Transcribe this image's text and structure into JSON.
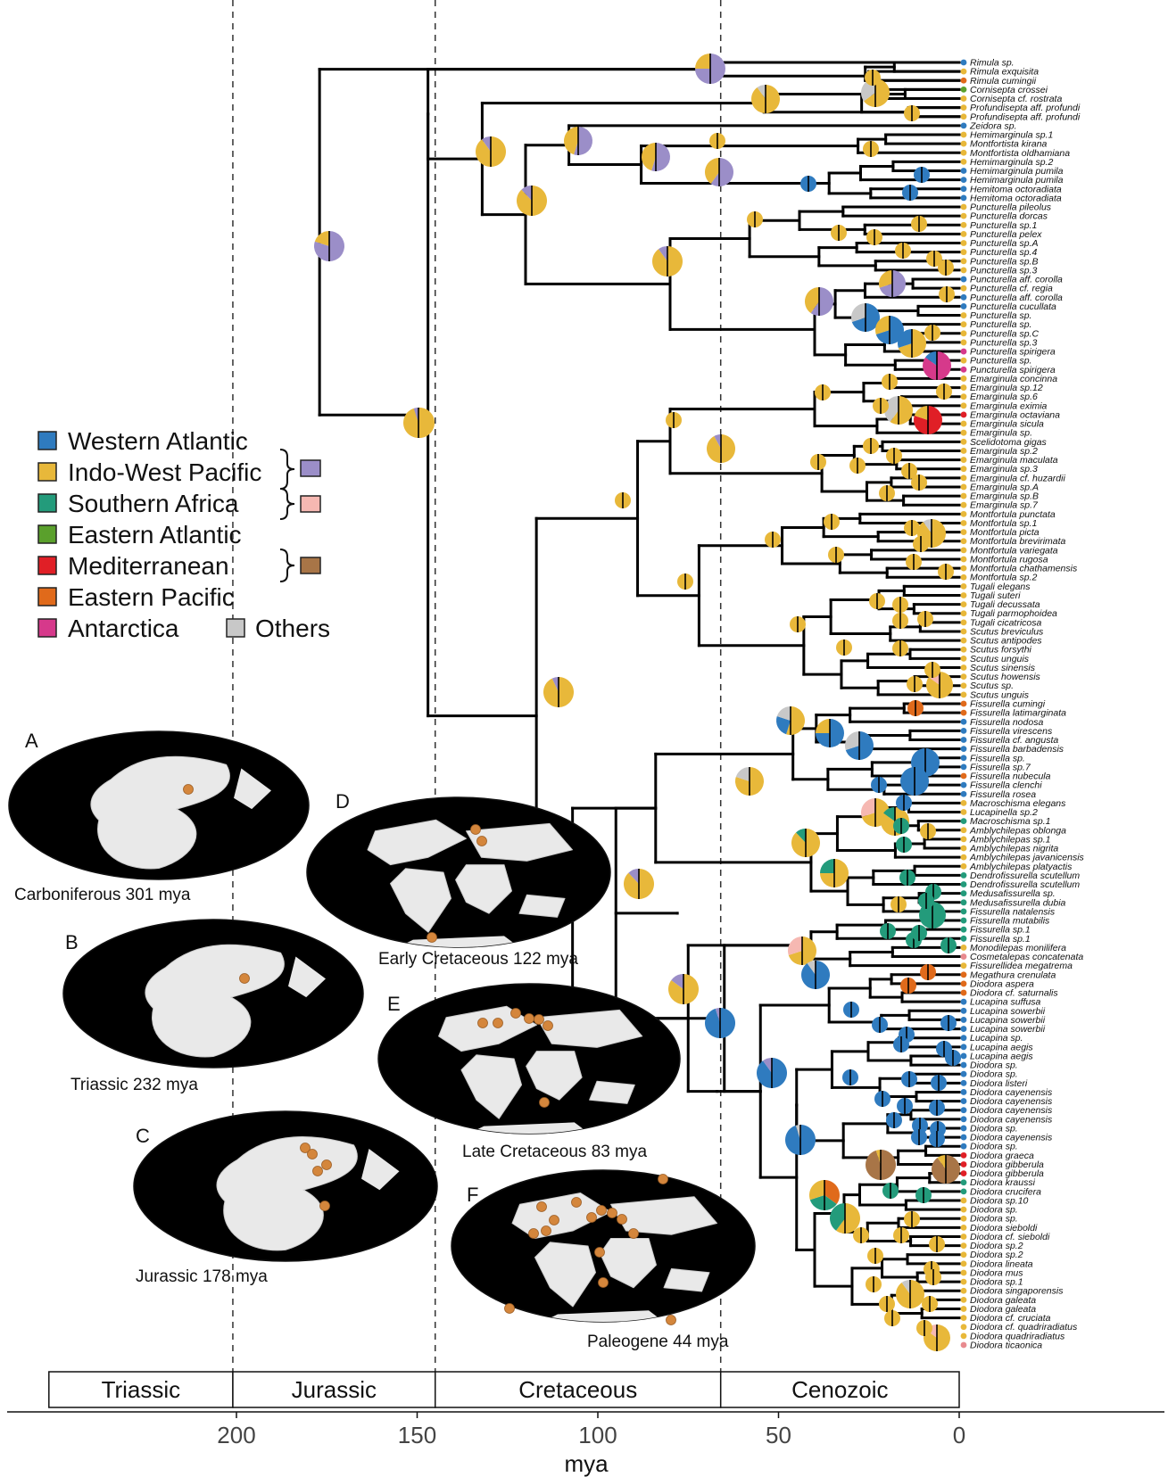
{
  "colors": {
    "western_atlantic": "#2f7bbf",
    "indo_west_pacific": "#e8b83a",
    "southern_africa": "#239b7b",
    "eastern_atlantic": "#5aa02c",
    "mediterranean": "#e01f26",
    "eastern_pacific": "#e06a1b",
    "antarctica": "#d6398b",
    "others": "#c8c8c8",
    "combo_wa_iwp": "#9b8ec8",
    "combo_iwp_sa": "#f6b8b2",
    "combo_ea_med": "#a87547",
    "map_fossil": "#d4863c"
  },
  "legend": {
    "items": [
      {
        "label": "Western Atlantic",
        "color": "#2f7bbf"
      },
      {
        "label": "Indo-West Pacific",
        "color": "#e8b83a"
      },
      {
        "label": "Southern Africa",
        "color": "#239b7b"
      },
      {
        "label": "Eastern Atlantic",
        "color": "#5aa02c"
      },
      {
        "label": "Mediterranean",
        "color": "#e01f26"
      },
      {
        "label": "Eastern Pacific",
        "color": "#e06a1b"
      },
      {
        "label": "Antarctica",
        "color": "#d6398b"
      }
    ],
    "others_label": "Others",
    "combos": [
      "#9b8ec8",
      "#f6b8b2",
      "#a87547"
    ]
  },
  "maps": [
    {
      "letter": "A",
      "label": "Carboniferous 301 mya"
    },
    {
      "letter": "B",
      "label": "Triassic 232 mya"
    },
    {
      "letter": "C",
      "label": "Jurassic 178 mya"
    },
    {
      "letter": "D",
      "label": "Early Cretaceous 122 mya"
    },
    {
      "letter": "E",
      "label": "Late Cretaceous 83 mya"
    },
    {
      "letter": "F",
      "label": "Paleogene 44 mya"
    }
  ],
  "periods": [
    "Triassic",
    "Jurassic",
    "Cretaceous",
    "Cenozoic"
  ],
  "period_boundaries_mya": [
    201,
    145,
    66
  ],
  "axis": {
    "title": "mya",
    "ticks": [
      200,
      150,
      100,
      50,
      0
    ]
  },
  "tips": [
    "Rimula sp.",
    "Rimula exquisita",
    "Rimula cumingii",
    "Cornisepta crossei",
    "Cornisepta cf. rostrata",
    "Profundisepta aff. profundi",
    "Profundisepta aff. profundi",
    "Zeidora sp.",
    "Hemimarginula sp.1",
    "Montfortista kirana",
    "Montfortista oldhamiana",
    "Hemimarginula sp.2",
    "Hemimarginula pumila",
    "Hemimarginula pumila",
    "Hemitoma octoradiata",
    "Hemitoma octoradiata",
    "Puncturella pileolus",
    "Puncturella dorcas",
    "Puncturella sp.1",
    "Puncturella pelex",
    "Puncturella sp.A",
    "Puncturella sp.4",
    "Puncturella sp.B",
    "Puncturella sp.3",
    "Puncturella aff. corolla",
    "Puncturella cf. regia",
    "Puncturella aff. corolla",
    "Puncturella cucullata",
    "Puncturella sp.",
    "Puncturella sp.",
    "Puncturella sp.C",
    "Puncturella sp.3",
    "Puncturella spirigera",
    "Puncturella sp.",
    "Puncturella spirigera",
    "Emarginula concinna",
    "Emarginula sp.12",
    "Emarginula sp.6",
    "Emarginula eximia",
    "Emarginula octaviana",
    "Emarginula sicula",
    "Emarginula sp.",
    "Scelidotoma gigas",
    "Emarginula sp.2",
    "Emarginula maculata",
    "Emarginula sp.3",
    "Emarginula cf. huzardii",
    "Emarginula sp.A",
    "Emarginula sp.B",
    "Emarginula sp.7",
    "Montfortula punctata",
    "Montfortula sp.1",
    "Montfortula picta",
    "Montfortula brevirimata",
    "Montfortula variegata",
    "Montfortula rugosa",
    "Montfortula chathamensis",
    "Montfortula sp.2",
    "Tugali elegans",
    "Tugali suteri",
    "Tugali decussata",
    "Tugali parmophoidea",
    "Tugali cicatricosa",
    "Scutus breviculus",
    "Scutus antipodes",
    "Scutus forsythi",
    "Scutus unguis",
    "Scutus sinensis",
    "Scutus howensis",
    "Scutus sp.",
    "Scutus unguis",
    "Fissurella cumingi",
    "Fissurella latimarginata",
    "Fissurella nodosa",
    "Fissurella virescens",
    "Fissurella cf. angusta",
    "Fissurella barbadensis",
    "Fissurella sp.",
    "Fissurella sp.7",
    "Fissurella nubecula",
    "Fissurella clenchi",
    "Fissurella rosea",
    "Macroschisma elegans",
    "Lucapinella sp.2",
    "Macroschisma sp.1",
    "Amblychilepas oblonga",
    "Amblychilepas sp.1",
    "Amblychilepas nigrita",
    "Amblychilepas javanicensis",
    "Amblychilepas platyactis",
    "Dendrofissurella scutellum",
    "Dendrofissurella scutellum",
    "Medusafissurella sp.",
    "Medusafissurella dubia",
    "Fissurella natalensis",
    "Fissurella mutabilis",
    "Fissurella sp.1",
    "Fissurella sp.1",
    "Monodilepas monilifera",
    "Cosmetalepas concatenata",
    "Fissurellidea megatrema",
    "Megathura crenulata",
    "Diodora aspera",
    "Diodora cf. saturnalis",
    "Lucapina suffusa",
    "Lucapina sowerbii",
    "Lucapina sowerbii",
    "Lucapina sowerbii",
    "Lucapina sp.",
    "Lucapina aegis",
    "Lucapina aegis",
    "Diodora sp.",
    "Diodora sp.",
    "Diodora listeri",
    "Diodora cayenensis",
    "Diodora cayenensis",
    "Diodora cayenensis",
    "Diodora cayenensis",
    "Diodora sp.",
    "Diodora cayenensis",
    "Diodora sp.",
    "Diodora graeca",
    "Diodora gibberula",
    "Diodora gibberula",
    "Diodora kraussi",
    "Diodora crucifera",
    "Diodora sp.10",
    "Diodora sp.",
    "Diodora sp.",
    "Diodora sieboldi",
    "Diodora cf. sieboldi",
    "Diodora sp.2",
    "Diodora sp.2",
    "Diodora lineata",
    "Diodora mus",
    "Diodora sp.1",
    "Diodora singaporensis",
    "Diodora galeata",
    "Diodora galeata",
    "Diodora cf. cruciata",
    "Diodora cf. quadriradiatus",
    "Diodora quadriradiatus",
    "Diodora ticaonica"
  ]
}
